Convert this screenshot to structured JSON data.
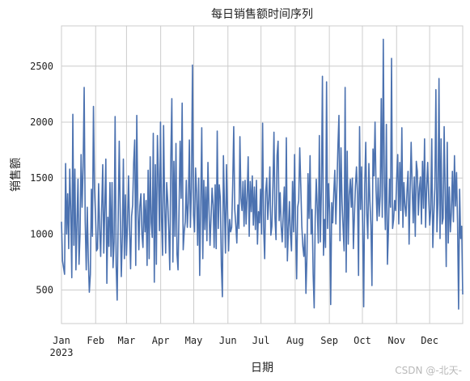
{
  "chart_data": {
    "type": "line",
    "title": "每日销售额时间序列",
    "xlabel": "日期",
    "ylabel": "销售额",
    "x_start": "2023-01-01",
    "x_end": "2023-12-31",
    "xlim": [
      "2023-01-01",
      "2023-12-31"
    ],
    "ylim": [
      200,
      2860
    ],
    "yticks": [
      500,
      1000,
      1500,
      2000,
      2500
    ],
    "xticks": [
      {
        "date": "2023-01-01",
        "label": "Jan",
        "sublabel": "2023"
      },
      {
        "date": "2023-02-01",
        "label": "Feb"
      },
      {
        "date": "2023-03-01",
        "label": "Mar"
      },
      {
        "date": "2023-04-01",
        "label": "Apr"
      },
      {
        "date": "2023-05-01",
        "label": "May"
      },
      {
        "date": "2023-06-01",
        "label": "Jun"
      },
      {
        "date": "2023-07-01",
        "label": "Jul"
      },
      {
        "date": "2023-08-01",
        "label": "Aug"
      },
      {
        "date": "2023-09-01",
        "label": "Sep"
      },
      {
        "date": "2023-10-01",
        "label": "Oct"
      },
      {
        "date": "2023-11-01",
        "label": "Nov"
      },
      {
        "date": "2023-12-01",
        "label": "Dec"
      }
    ],
    "grid": true,
    "line_color": "#4c72b0",
    "series": [
      {
        "values": [
          1110,
          760,
          700,
          640,
          1630,
          1000,
          1360,
          870,
          1580,
          1200,
          610,
          2070,
          900,
          1580,
          680,
          1100,
          1490,
          730,
          1000,
          1710,
          1240,
          1600,
          2310,
          1110,
          680,
          1240,
          780,
          480,
          640,
          1400,
          980,
          2140,
          1400,
          1170,
          850,
          870,
          1450,
          1050,
          800,
          1230,
          1620,
          830,
          1240,
          1670,
          560,
          1150,
          890,
          1460,
          800,
          1460,
          700,
          930,
          2050,
          720,
          410,
          1150,
          1830,
          1160,
          620,
          980,
          1670,
          780,
          1350,
          810,
          1090,
          1520,
          1050,
          690,
          1160,
          1260,
          1640,
          1840,
          720,
          2060,
          1250,
          860,
          1250,
          1360,
          1000,
          880,
          1360,
          1020,
          1300,
          720,
          1570,
          780,
          1690,
          1100,
          970,
          1900,
          570,
          1620,
          730,
          1880,
          1520,
          1030,
          2000,
          1140,
          810,
          1970,
          1280,
          830,
          1460,
          1300,
          1030,
          680,
          1670,
          2210,
          750,
          1650,
          980,
          1810,
          820,
          680,
          1230,
          1830,
          1320,
          2170,
          860,
          1020,
          1110,
          1480,
          1060,
          1280,
          1840,
          1060,
          1410,
          2510,
          1170,
          1020,
          1590,
          1370,
          900,
          1500,
          630,
          1260,
          1950,
          780,
          1480,
          1040,
          1420,
          940,
          1640,
          1230,
          900,
          1140,
          1410,
          1260,
          880,
          1440,
          870,
          1920,
          1050,
          1440,
          1320,
          720,
          440,
          1700,
          1260,
          830,
          1620,
          1200,
          850,
          1130,
          1020,
          1060,
          1440,
          1960,
          1220,
          1080,
          920,
          1260,
          1050,
          1870,
          1320,
          1210,
          1470,
          1070,
          1480,
          1090,
          1340,
          1690,
          980,
          1470,
          1200,
          1520,
          1080,
          1420,
          1040,
          1480,
          910,
          1200,
          1100,
          1400,
          1000,
          1990,
          1060,
          780,
          1380,
          1500,
          1130,
          1300,
          1600,
          990,
          1070,
          1430,
          1910,
          1140,
          950,
          1700,
          1830,
          1120,
          1370,
          1070,
          930,
          1180,
          1420,
          880,
          1860,
          760,
          1040,
          1290,
          1000,
          850,
          1470,
          1020,
          1710,
          1070,
          600,
          1240,
          1300,
          1770,
          1440,
          1070,
          890,
          800,
          1000,
          470,
          810,
          1540,
          1140,
          1700,
          1000,
          1220,
          640,
          340,
          1150,
          1490,
          1230,
          920,
          1880,
          930,
          1400,
          2410,
          810,
          1130,
          880,
          2360,
          1050,
          1450,
          1190,
          370,
          1280,
          1100,
          1370,
          1570,
          1090,
          1410,
          1780,
          2060,
          940,
          1770,
          1290,
          1060,
          850,
          2310,
          660,
          1740,
          910,
          1350,
          1490,
          1240,
          1500,
          870,
          1160,
          1430,
          1600,
          1350,
          630,
          1960,
          1220,
          1600,
          1080,
          350,
          1440,
          1820,
          1180,
          960,
          1630,
          1290,
          1080,
          540,
          1760,
          1520,
          2000,
          1390,
          1120,
          1500,
          1160,
          1340,
          2210,
          1150,
          2740,
          1460,
          1040,
          1980,
          730,
          1030,
          1490,
          1240,
          2570,
          1050,
          1130,
          1300,
          1210,
          1500,
          1710,
          1090,
          1640,
          1210,
          1950,
          1060,
          1460,
          1250,
          1160,
          1390,
          1560,
          910,
          1380,
          1820,
          1420,
          1100,
          1510,
          980,
          1650,
          1560,
          1170,
          1410,
          1510,
          1090,
          1650,
          1230,
          1850,
          1060,
          1400,
          1640,
          1330,
          1080,
          1220,
          1850,
          880,
          1170,
          1410,
          2290,
          1020,
          1280,
          2390,
          960,
          1850,
          1090,
          1140,
          1960,
          1360,
          710,
          1820,
          920,
          1420,
          1020,
          1190,
          1560,
          1110,
          1700,
          1250,
          1550,
          1100,
          330,
          1400,
          960,
          1070,
          460
        ]
      }
    ]
  },
  "watermark": "CSDN @-北天-"
}
